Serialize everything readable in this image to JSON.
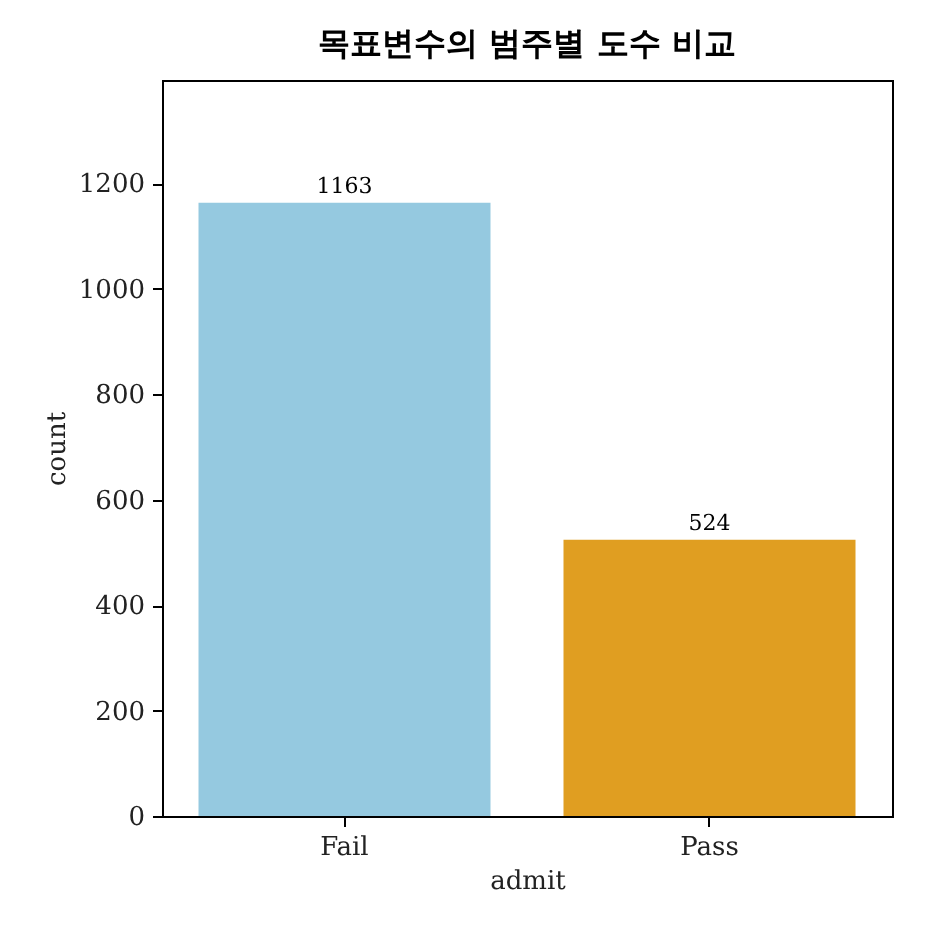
{
  "chart_data": {
    "type": "bar",
    "title": "목표변수의 범주별 도수 비교",
    "xlabel": "admit",
    "ylabel": "count",
    "categories": [
      "Fail",
      "Pass"
    ],
    "values": [
      1163,
      524
    ],
    "colors": [
      "#95c9e0",
      "#e09e21"
    ],
    "ylim": [
      0,
      1396
    ],
    "yticks": [
      0,
      200,
      400,
      600,
      800,
      1000,
      1200
    ],
    "data_labels": true,
    "grid": false
  }
}
